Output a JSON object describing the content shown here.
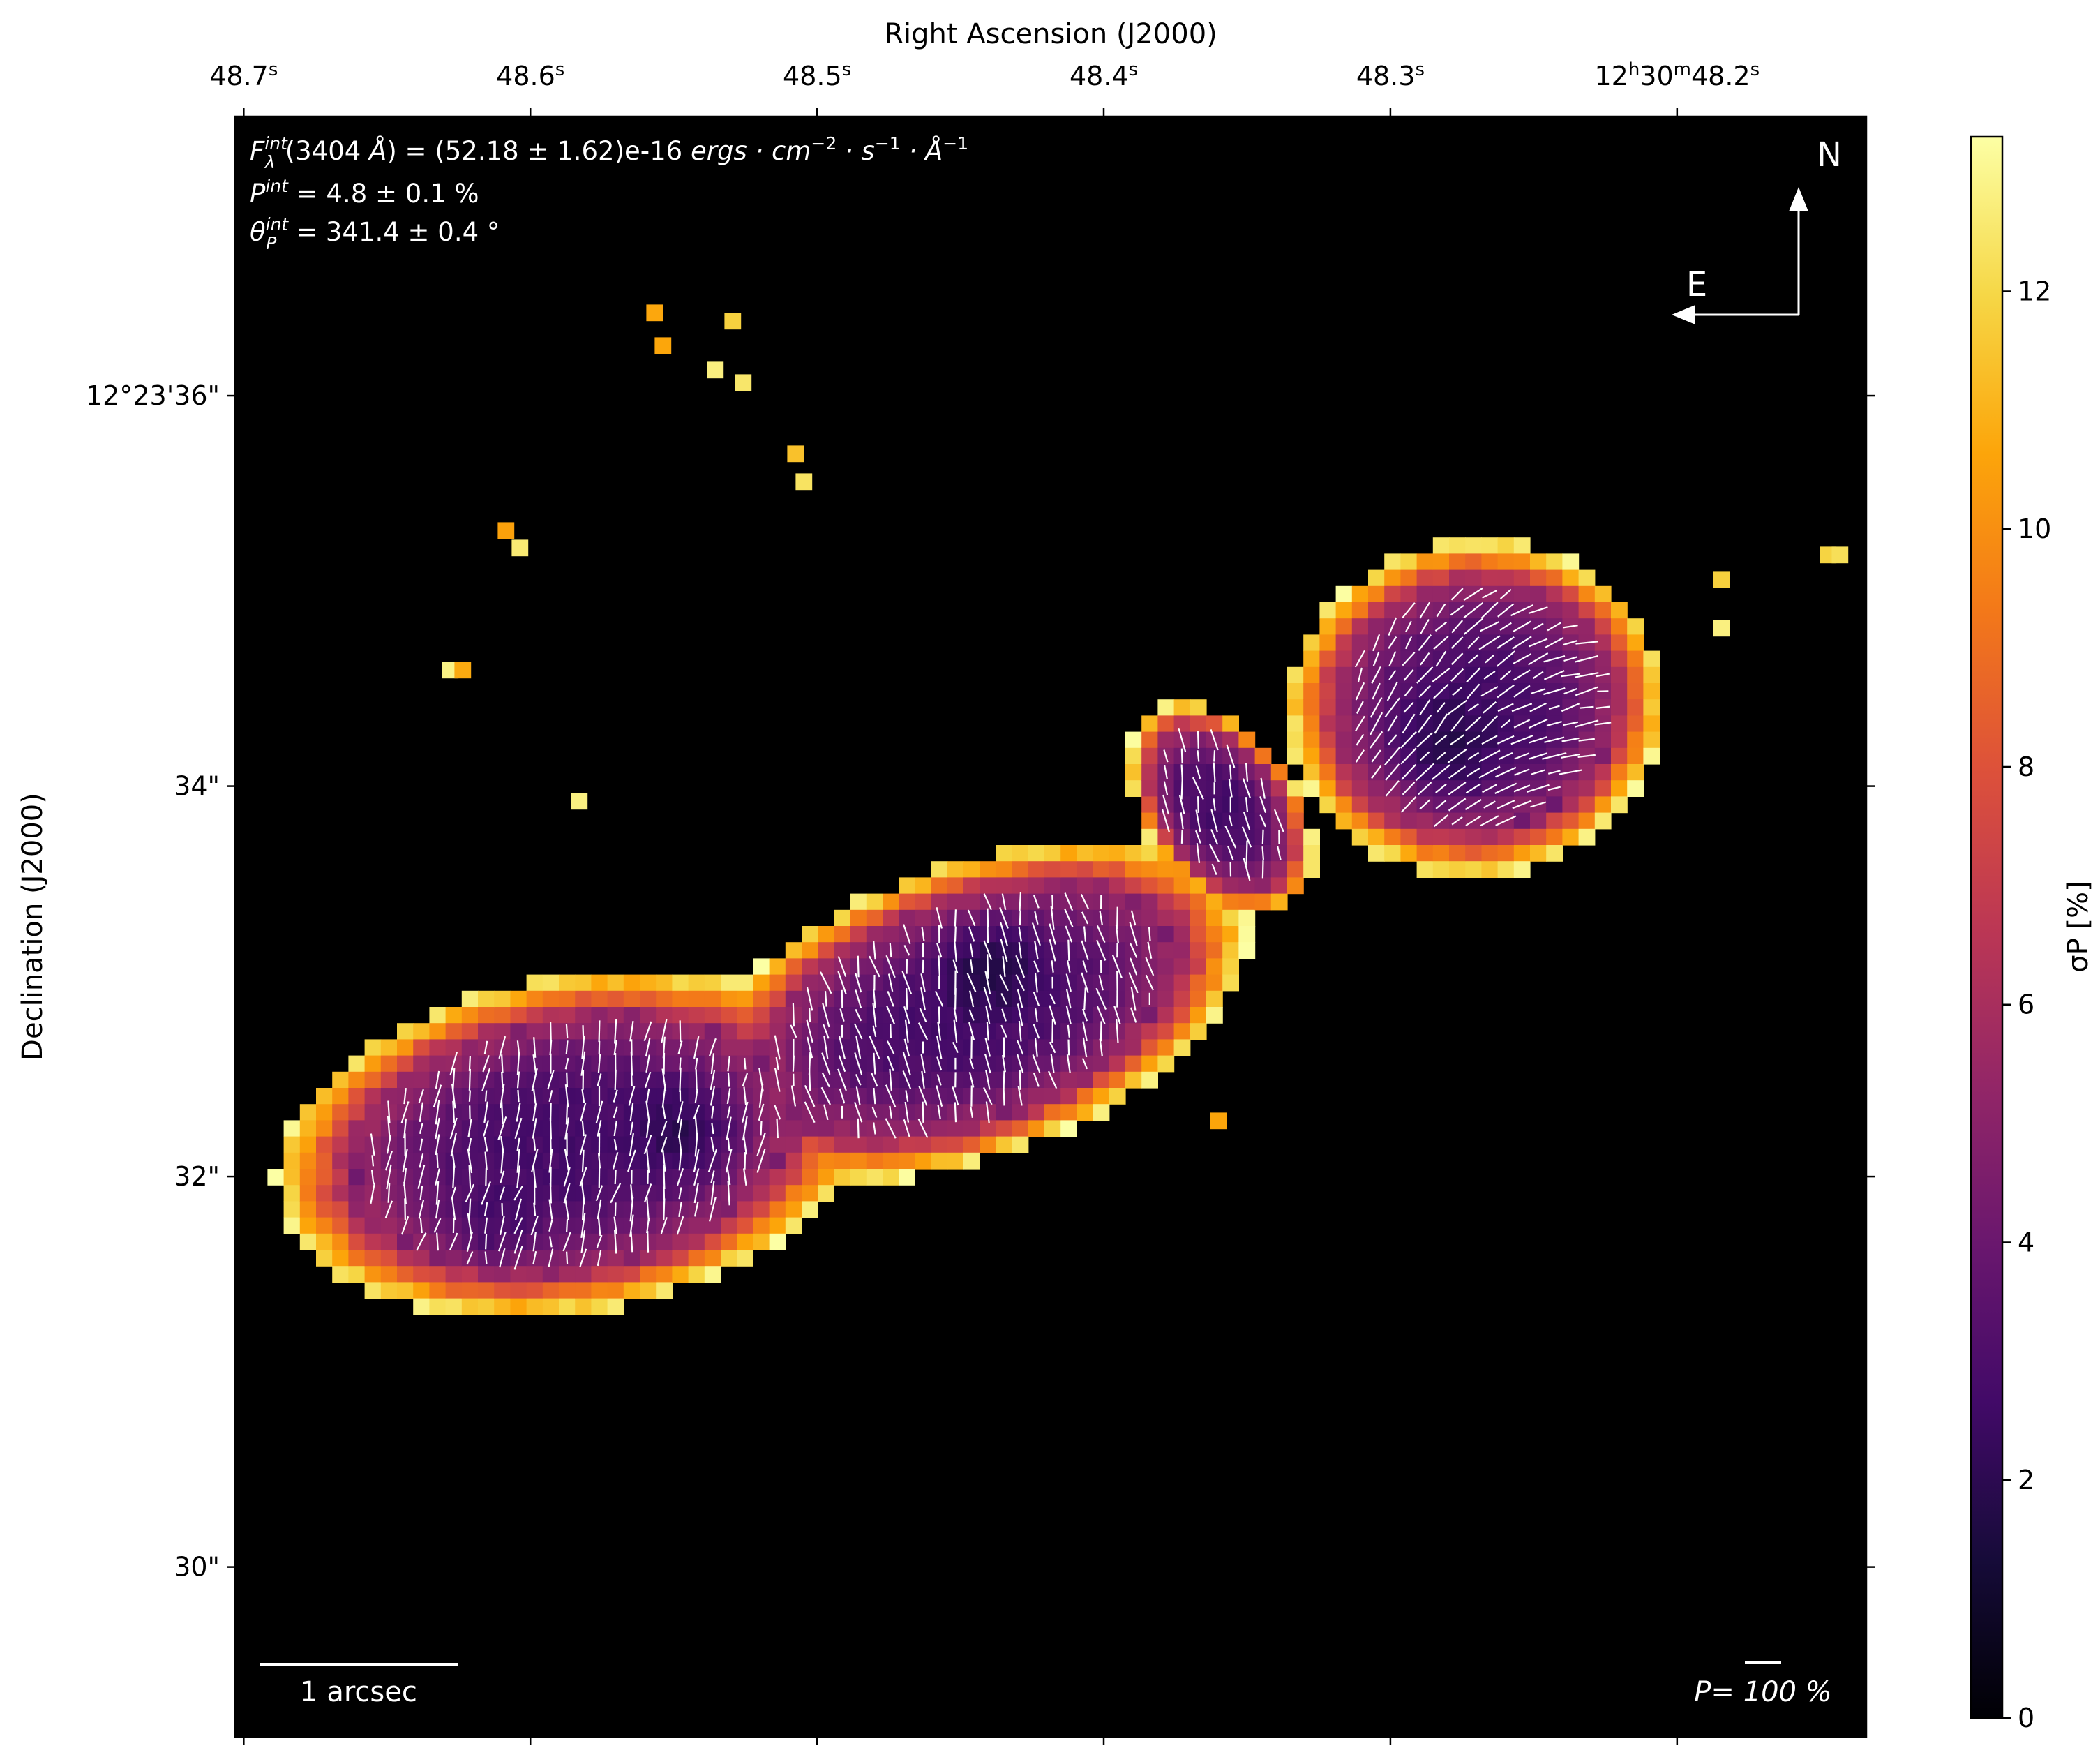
{
  "chart_data": {
    "type": "heatmap",
    "title": "",
    "xlabel": "Right Ascension (J2000)",
    "ylabel": "Declination (J2000)",
    "x_ticks": [
      {
        "value": 48.7,
        "label": "48.7",
        "sup": "s"
      },
      {
        "value": 48.6,
        "label": "48.6",
        "sup": "s"
      },
      {
        "value": 48.5,
        "label": "48.5",
        "sup": "s"
      },
      {
        "value": 48.4,
        "label": "48.4",
        "sup": "s"
      },
      {
        "value": 48.3,
        "label": "48.3",
        "sup": "s"
      },
      {
        "value": 48.2,
        "label": "12h30m48.2s",
        "pre": "12",
        "h": "h",
        "mid": "30",
        "m": "m",
        "post": "48.2",
        "sup": "s"
      }
    ],
    "y_ticks": [
      {
        "value": 36,
        "label": "12°23'36\""
      },
      {
        "value": 34,
        "label": "34\""
      },
      {
        "value": 32,
        "label": "32\""
      },
      {
        "value": 30,
        "label": "30\""
      }
    ],
    "xlim": [
      48.703,
      48.134
    ],
    "ylim": [
      29.13,
      37.43
    ],
    "colorbar": {
      "label": "σP [%]",
      "colormap": "inferno",
      "range": [
        0,
        13.3
      ],
      "ticks": [
        0,
        2,
        4,
        6,
        8,
        10,
        12
      ]
    },
    "annotations": {
      "flux_line": "F_λ^int(3404 Å) = (52.18 ± 1.62)e-16 ergs·cm⁻²·s⁻¹·Å⁻¹",
      "pol_line": "P^int = 4.8 ± 0.1 %",
      "angle_line": "θ_P^int = 341.4 ± 0.4 °"
    },
    "compass": {
      "north": "N",
      "east": "E"
    },
    "scalebar_label": "1 arcsec",
    "pol_scale_label": "P= 100 %",
    "structure_notes": "Two polarized lobes joined by a narrow bridge; σP lowest (~1-3%) in lobe cores rising to ~13% at edges; white polarization vectors mostly near-vertical in eastern lobe, curving to near-horizontal in western lobe."
  },
  "colors": {
    "background": "#000000",
    "vectors": "#ffffff",
    "axes": "#000000"
  }
}
